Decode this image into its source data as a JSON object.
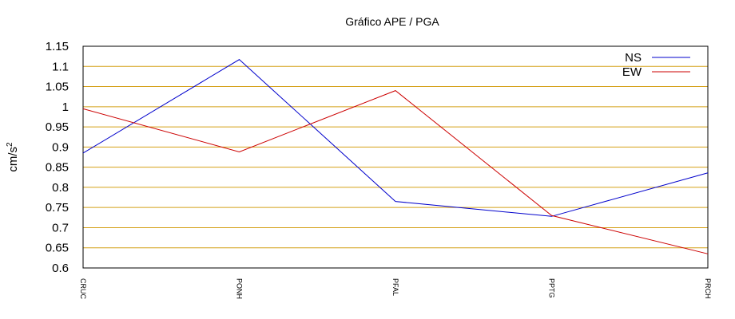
{
  "chart_data": {
    "type": "line",
    "title": "Gráfico  APE / PGA",
    "xlabel": "",
    "ylabel": "cm/s",
    "ylabel_superscript": "2",
    "categories": [
      "CRUC",
      "PONH",
      "PFAL",
      "PPTG",
      "PRCH"
    ],
    "series": [
      {
        "name": "NS",
        "color": "#0000cc",
        "values": [
          0.885,
          1.117,
          0.765,
          0.728,
          0.836
        ]
      },
      {
        "name": "EW",
        "color": "#cc0000",
        "values": [
          0.995,
          0.888,
          1.04,
          0.73,
          0.635
        ]
      }
    ],
    "ylim": [
      0.6,
      1.15
    ],
    "yticks": [
      "0.6",
      "0.65",
      "0.7",
      "0.75",
      "0.8",
      "0.85",
      "0.9",
      "0.95",
      "1",
      "1.05",
      "1.1",
      "1.15"
    ],
    "grid": true,
    "grid_color": "#d4a017",
    "legend": "top-right"
  }
}
